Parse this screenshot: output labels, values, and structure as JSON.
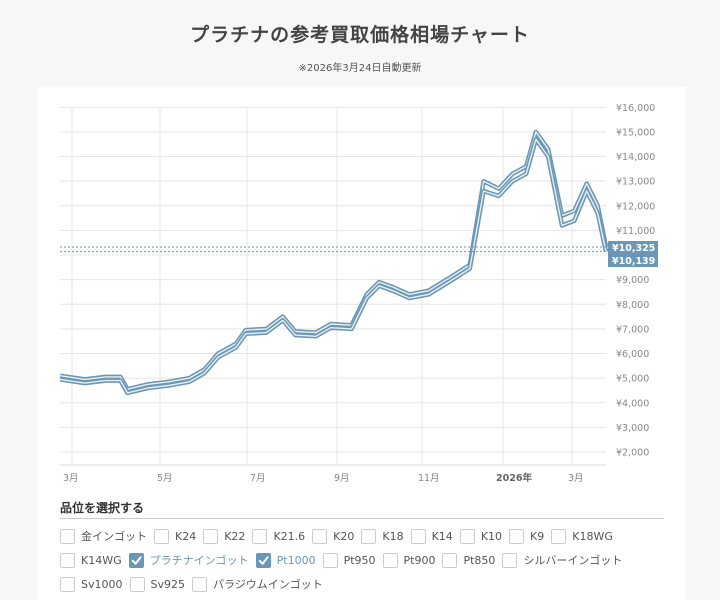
{
  "header": {
    "title": "プラチナの参考買取価格相場チャート",
    "updated": "※2026年3月24日自動更新"
  },
  "colors": {
    "accent": "#6a97b5",
    "grid": "#e5e5e5",
    "background": "#f7f7f7",
    "card": "#ffffff"
  },
  "chart_data": {
    "type": "line",
    "title": "プラチナの参考買取価格相場チャート",
    "xlabel": "",
    "ylabel": "",
    "ylim": [
      1500,
      16000
    ],
    "y_ticks": [
      "¥2,000",
      "¥3,000",
      "¥4,000",
      "¥5,000",
      "¥6,000",
      "¥7,000",
      "¥8,000",
      "¥9,000",
      "¥10,000",
      "¥11,000",
      "¥12,000",
      "¥13,000",
      "¥14,000",
      "¥15,000",
      "¥16,000"
    ],
    "x_ticks": [
      "3月",
      "5月",
      "7月",
      "9月",
      "11月",
      "2026年",
      "3月"
    ],
    "grid": true,
    "legend": "none",
    "current_labels": [
      "¥10,325",
      "¥10,139"
    ],
    "x": [
      "2025-02-20",
      "2025-03-10",
      "2025-03-25",
      "2025-04-05",
      "2025-04-10",
      "2025-04-25",
      "2025-05-10",
      "2025-05-25",
      "2025-06-05",
      "2025-06-15",
      "2025-06-28",
      "2025-07-05",
      "2025-07-20",
      "2025-08-01",
      "2025-08-10",
      "2025-08-25",
      "2025-09-05",
      "2025-09-20",
      "2025-10-01",
      "2025-10-10",
      "2025-10-20",
      "2025-11-01",
      "2025-11-15",
      "2025-12-01",
      "2025-12-15",
      "2025-12-25",
      "2026-01-05",
      "2026-01-15",
      "2026-01-25",
      "2026-02-01",
      "2026-02-10",
      "2026-02-20",
      "2026-03-01",
      "2026-03-10",
      "2026-03-18",
      "2026-03-24"
    ],
    "series": [
      {
        "name": "プラチナインゴット",
        "values": [
          5100,
          4950,
          5050,
          5050,
          4550,
          4750,
          4850,
          5000,
          5350,
          6000,
          6400,
          6950,
          7000,
          7500,
          6900,
          6850,
          7200,
          7150,
          8400,
          8900,
          8700,
          8400,
          8550,
          9100,
          9600,
          13000,
          12700,
          13300,
          13600,
          15000,
          14300,
          11600,
          11800,
          12900,
          12000,
          10325
        ]
      },
      {
        "name": "Pt1000",
        "values": [
          4950,
          4800,
          4900,
          4900,
          4400,
          4600,
          4700,
          4850,
          5200,
          5850,
          6250,
          6800,
          6850,
          7350,
          6750,
          6700,
          7050,
          7000,
          8250,
          8750,
          8550,
          8250,
          8400,
          8950,
          9450,
          12600,
          12400,
          13000,
          13300,
          14700,
          14000,
          11200,
          11400,
          12600,
          11700,
          10139
        ]
      }
    ]
  },
  "selector": {
    "heading": "品位を選択する",
    "options": [
      {
        "label": "金インゴット",
        "checked": false
      },
      {
        "label": "K24",
        "checked": false
      },
      {
        "label": "K22",
        "checked": false
      },
      {
        "label": "K21.6",
        "checked": false
      },
      {
        "label": "K20",
        "checked": false
      },
      {
        "label": "K18",
        "checked": false
      },
      {
        "label": "K14",
        "checked": false
      },
      {
        "label": "K10",
        "checked": false
      },
      {
        "label": "K9",
        "checked": false
      },
      {
        "label": "K18WG",
        "checked": false
      },
      {
        "label": "K14WG",
        "checked": false
      },
      {
        "label": "プラチナインゴット",
        "checked": true
      },
      {
        "label": "Pt1000",
        "checked": true
      },
      {
        "label": "Pt950",
        "checked": false
      },
      {
        "label": "Pt900",
        "checked": false
      },
      {
        "label": "Pt850",
        "checked": false
      },
      {
        "label": "シルバーインゴット",
        "checked": false
      },
      {
        "label": "Sv1000",
        "checked": false
      },
      {
        "label": "Sv925",
        "checked": false
      },
      {
        "label": "パラジウムインゴット",
        "checked": false
      }
    ]
  }
}
